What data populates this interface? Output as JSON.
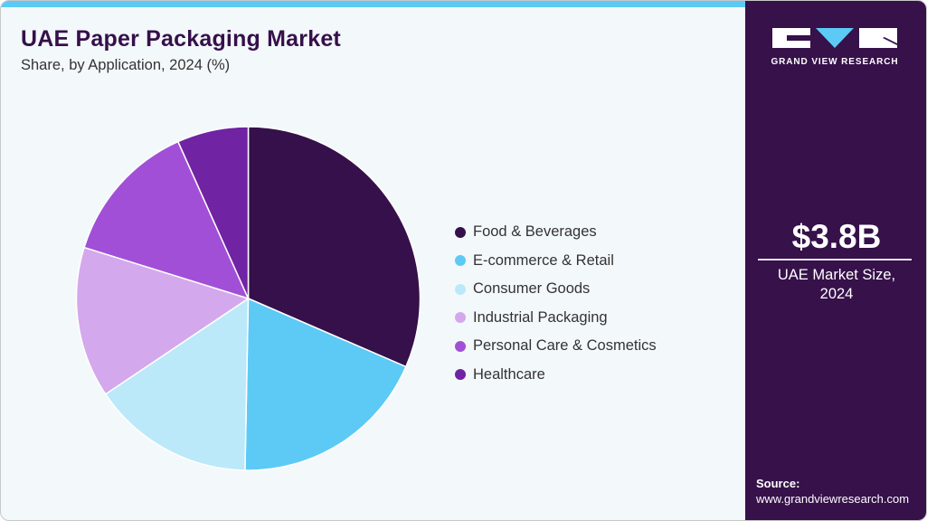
{
  "header": {
    "title": "UAE Paper Packaging Market",
    "subtitle": "Share, by Application, 2024 (%)"
  },
  "colors": {
    "accent_bar": "#5ccaf5",
    "side_panel": "#36114a",
    "background": "#f3f8fb",
    "title": "#36104a"
  },
  "legend": [
    {
      "label": "Food & Beverages",
      "color": "#36104a"
    },
    {
      "label": "E-commerce & Retail",
      "color": "#5ccaf5"
    },
    {
      "label": "Consumer Goods",
      "color": "#bbe9f9"
    },
    {
      "label": "Industrial Packaging",
      "color": "#d4a8ec"
    },
    {
      "label": "Personal Care & Cosmetics",
      "color": "#a24fd7"
    },
    {
      "label": "Healthcare",
      "color": "#7023a2"
    }
  ],
  "side_panel": {
    "logo_text": "GRAND VIEW RESEARCH",
    "market_value": "$3.8B",
    "market_caption_line1": "UAE Market Size,",
    "market_caption_line2": "2024",
    "source_label": "Source:",
    "source_url": "www.grandviewresearch.com"
  },
  "chart_data": {
    "type": "pie",
    "title": "UAE Paper Packaging Market",
    "subtitle": "Share, by Application, 2024 (%)",
    "categories": [
      "Food & Beverages",
      "E-commerce & Retail",
      "Consumer Goods",
      "Industrial Packaging",
      "Personal Care & Cosmetics",
      "Healthcare"
    ],
    "values": [
      31.5,
      18.8,
      15.3,
      14.2,
      13.5,
      6.7
    ],
    "colors": [
      "#36104a",
      "#5ccaf5",
      "#bbe9f9",
      "#d4a8ec",
      "#a24fd7",
      "#7023a2"
    ],
    "start_angle": "12 o'clock, clockwise",
    "legend_position": "right",
    "annotation": "$3.8B UAE Market Size, 2024"
  }
}
